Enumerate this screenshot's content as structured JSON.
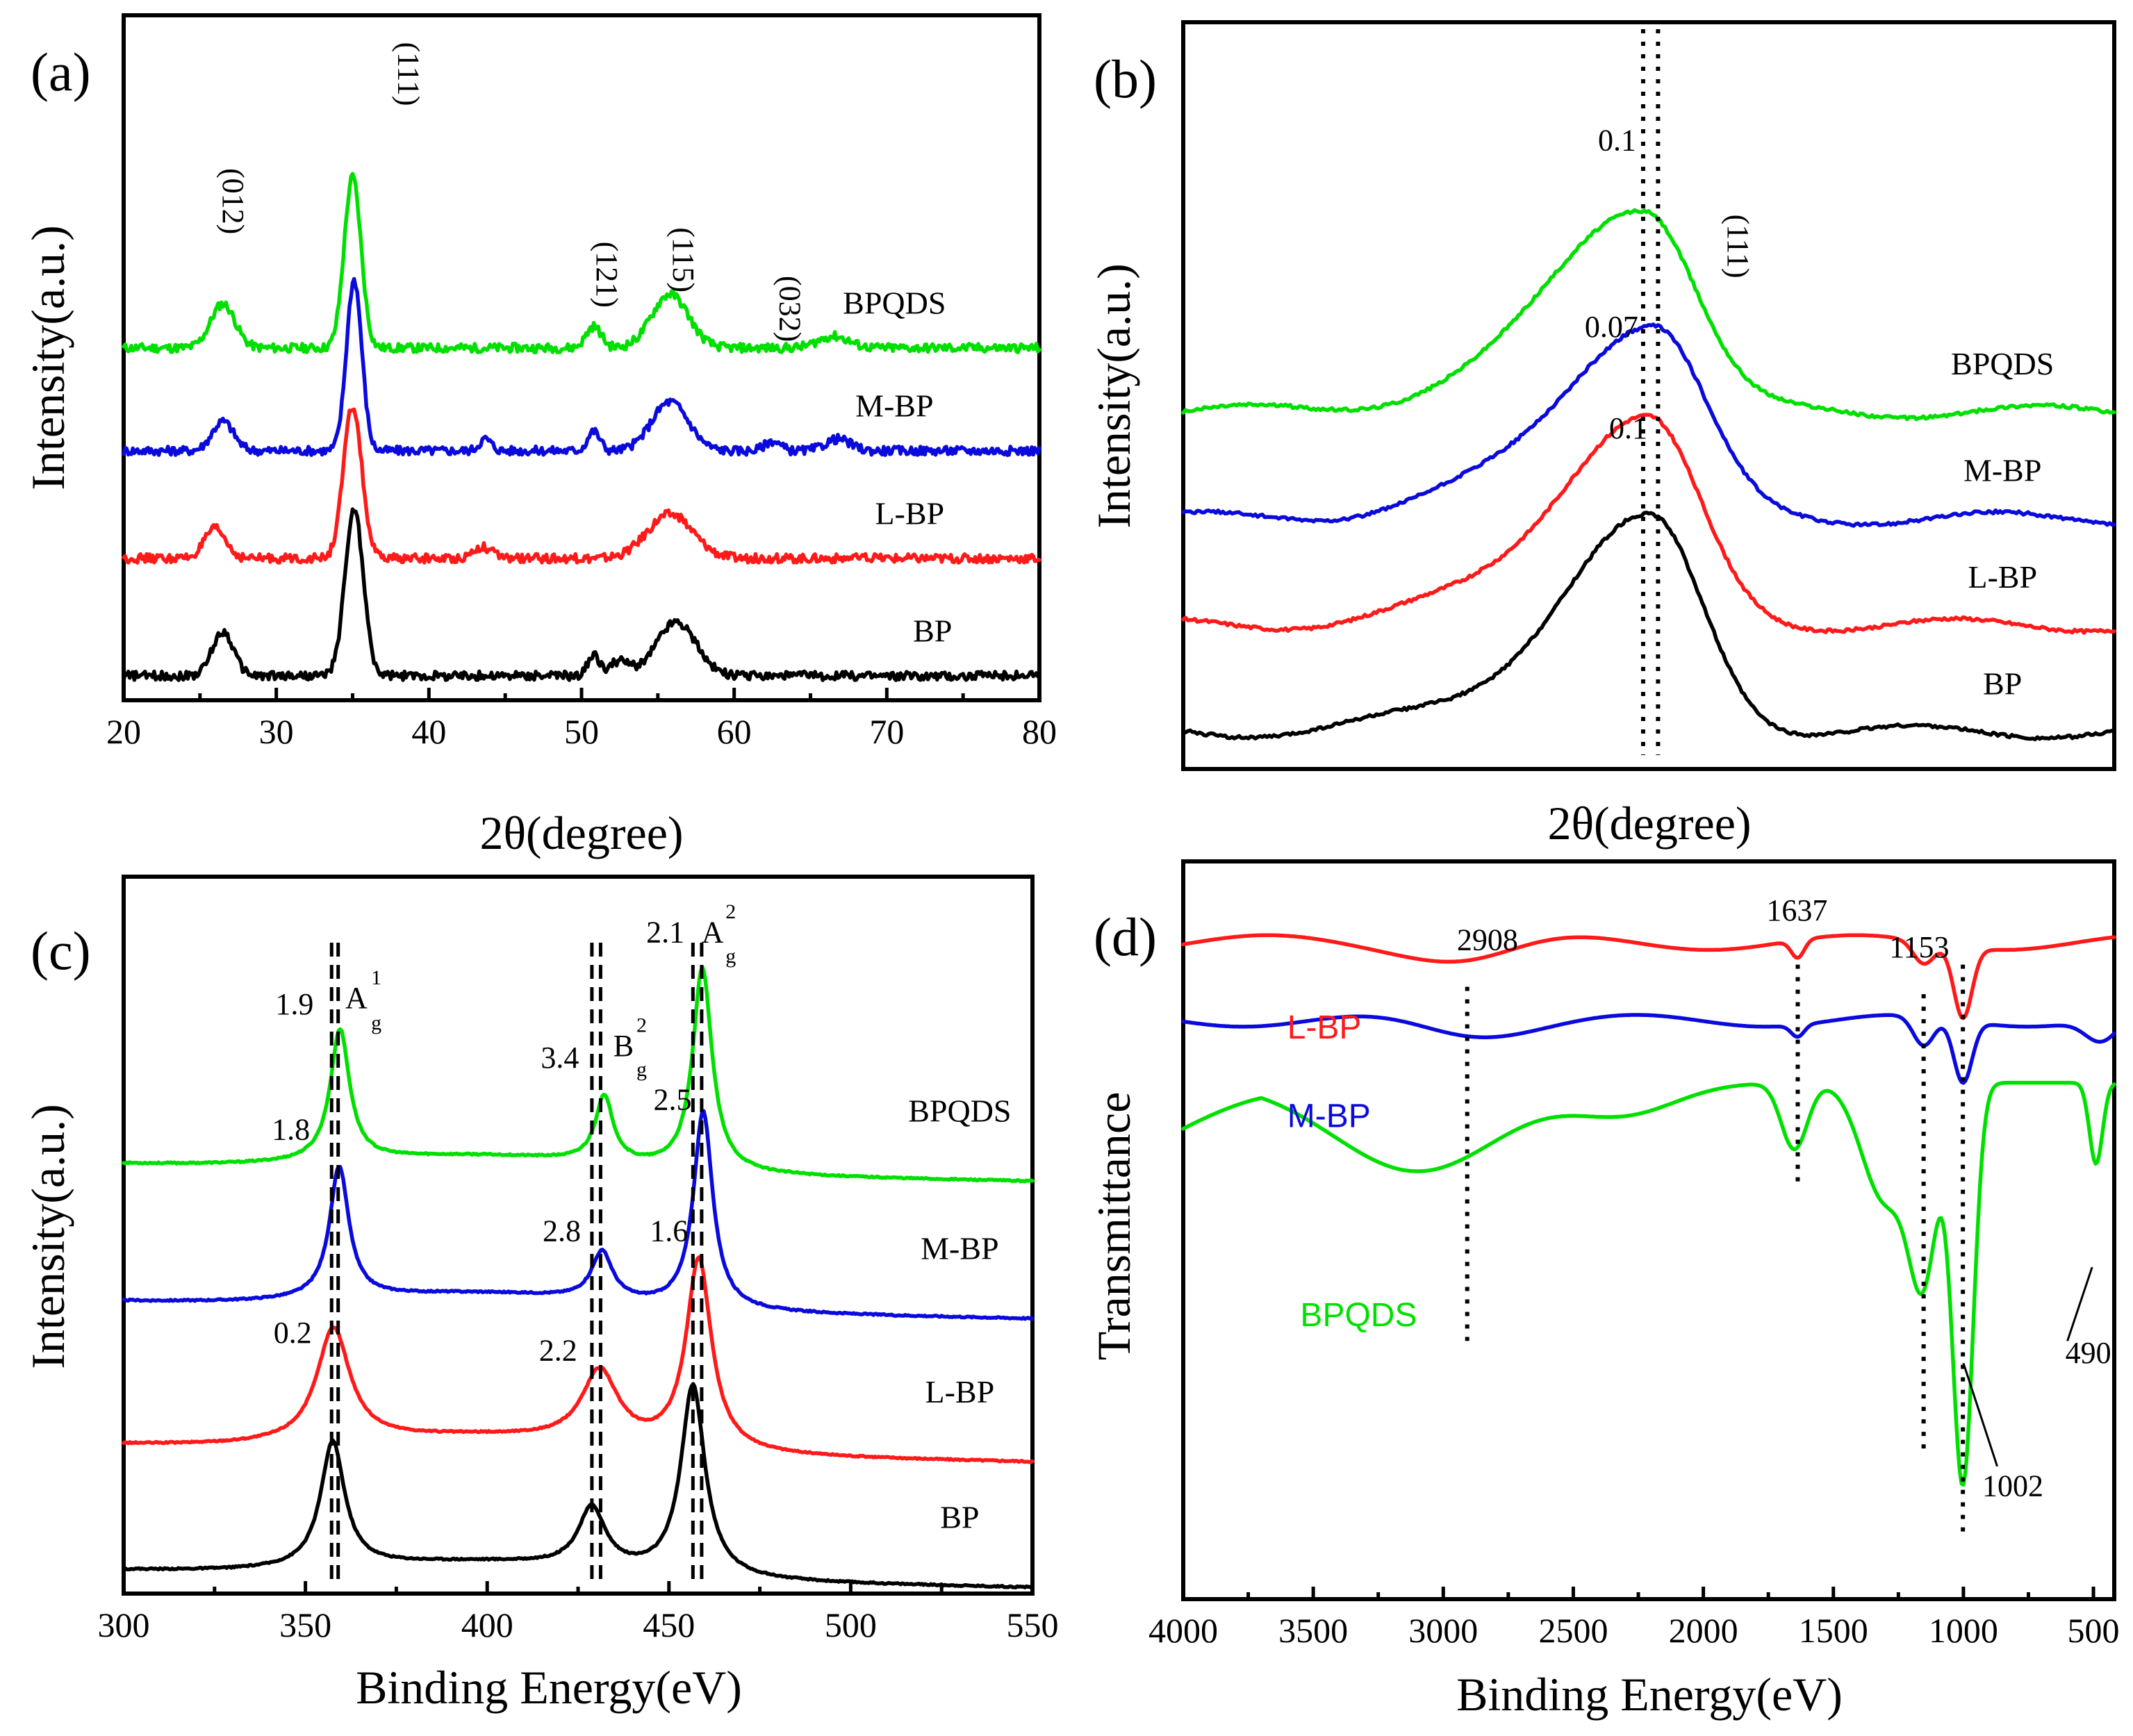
{
  "colors": {
    "green": "#00e000",
    "blue": "#0a0adc",
    "red": "#ff1a1a",
    "black": "#000000"
  },
  "chart_data": [
    {
      "panel": "a",
      "type": "line",
      "label": "(a)",
      "xlabel": "2θ(degree)",
      "ylabel": "Intensity(a.u.)",
      "xlim": [
        20,
        80
      ],
      "xticks": [
        "20",
        "30",
        "40",
        "50",
        "60",
        "70",
        "80"
      ],
      "series": [
        {
          "name": "BPQDS",
          "color": "#00e000",
          "baseline": 3.6,
          "peaks": [
            [
              26.5,
              0.45,
              0.8
            ],
            [
              35.0,
              1.75,
              0.55
            ],
            [
              50.8,
              0.22,
              0.5
            ],
            [
              55.8,
              0.55,
              1.2
            ],
            [
              66.5,
              0.12,
              1.0
            ]
          ],
          "label_x": 70.5
        },
        {
          "name": "M-BP",
          "color": "#0a0adc",
          "baseline": 2.55,
          "peaks": [
            [
              26.5,
              0.3,
              0.7
            ],
            [
              35.1,
              1.75,
              0.5
            ],
            [
              43.7,
              0.12,
              0.4
            ],
            [
              50.8,
              0.2,
              0.4
            ],
            [
              55.8,
              0.5,
              1.2
            ],
            [
              62.5,
              0.1,
              0.5
            ],
            [
              66.8,
              0.12,
              0.8
            ]
          ],
          "label_x": 70.5
        },
        {
          "name": "L-BP",
          "color": "#ff1a1a",
          "baseline": 1.45,
          "peaks": [
            [
              26.0,
              0.3,
              0.7
            ],
            [
              35.0,
              1.55,
              0.6
            ],
            [
              43.5,
              0.12,
              0.6
            ],
            [
              55.8,
              0.45,
              1.5
            ]
          ],
          "label_x": 71.5
        },
        {
          "name": "BP",
          "color": "#000000",
          "baseline": 0.25,
          "peaks": [
            [
              26.5,
              0.45,
              0.7
            ],
            [
              35.1,
              1.7,
              0.6
            ],
            [
              50.8,
              0.2,
              0.4
            ],
            [
              52.5,
              0.15,
              0.6
            ],
            [
              56.2,
              0.55,
              1.3
            ]
          ],
          "label_x": 73.0
        }
      ],
      "annotations": [
        {
          "text": "(012)",
          "x": 26.5,
          "y": 5.1
        },
        {
          "text": "(111)",
          "x": 38.0,
          "y": 6.4
        },
        {
          "text": "(121)",
          "x": 51.0,
          "y": 4.35
        },
        {
          "text": "(115)",
          "x": 56.0,
          "y": 4.5
        },
        {
          "text": "(032)",
          "x": 63.0,
          "y": 4.0
        }
      ]
    },
    {
      "panel": "b",
      "type": "line",
      "label": "(b)",
      "xlabel": "2θ(degree)",
      "ylabel": "Intensity(a.u.)",
      "series": [
        {
          "name": "BPQDS",
          "color": "#00e000",
          "baseline": 3.35,
          "peak_center": 49.6,
          "peak_height": 1.85,
          "label_x": 88.0
        },
        {
          "name": "M-BP",
          "color": "#0a0adc",
          "baseline": 2.35,
          "peak_center": 50.5,
          "peak_height": 1.75,
          "label_x": 88.0
        },
        {
          "name": "L-BP",
          "color": "#ff1a1a",
          "baseline": 1.35,
          "peak_center": 49.9,
          "peak_height": 1.85,
          "label_x": 88.0
        },
        {
          "name": "BP",
          "color": "#000000",
          "baseline": 0.35,
          "peak_center": 50.3,
          "peak_height": 1.9,
          "label_x": 88.0
        }
      ],
      "annotations": [
        {
          "text": "0.1",
          "x": 46.6,
          "y": 5.8
        },
        {
          "text": "(111)",
          "x": 58.5,
          "y": 4.9
        },
        {
          "text": "0.07",
          "x": 46.0,
          "y": 4.05
        },
        {
          "text": "0.1",
          "x": 47.8,
          "y": 3.1
        }
      ]
    },
    {
      "panel": "c",
      "type": "line",
      "label": "(c)",
      "xlabel": "Binding Energy(eV)",
      "ylabel": "Intensity(a.u.)",
      "xlim": [
        300,
        550
      ],
      "xticks": [
        "300",
        "350",
        "400",
        "450",
        "500",
        "550"
      ],
      "series": [
        {
          "name": "BPQDS",
          "color": "#00e000",
          "baseline": 3.6,
          "peaks": [
            [
              359.5,
              1.1,
              3.2
            ],
            [
              432.2,
              0.55,
              3.0
            ],
            [
              459.2,
              1.7,
              3.2
            ]
          ],
          "label_x": 530.0
        },
        {
          "name": "M-BP",
          "color": "#0a0adc",
          "baseline": 2.45,
          "peaks": [
            [
              359.3,
              1.1,
              3.2
            ],
            [
              431.6,
              0.4,
              3.5
            ],
            [
              459.4,
              1.65,
              3.2
            ]
          ],
          "label_x": 530.0
        },
        {
          "name": "L-BP",
          "color": "#ff1a1a",
          "baseline": 1.25,
          "peaks": [
            [
              357.7,
              0.95,
              5.5
            ],
            [
              431.0,
              0.6,
              6.0
            ],
            [
              458.2,
              1.6,
              4.2
            ]
          ],
          "label_x": 530.0
        },
        {
          "name": "BP",
          "color": "#000000",
          "baseline": 0.2,
          "peaks": [
            [
              357.5,
              1.05,
              4.0
            ],
            [
              428.8,
              0.5,
              4.5
            ],
            [
              456.6,
              1.6,
              4.0
            ]
          ],
          "label_x": 530.0
        }
      ],
      "annotations": [
        {
          "text": "1.9",
          "x": 347.0,
          "y": 4.85
        },
        {
          "text": "A",
          "x": 364.0,
          "y": 4.9
        },
        {
          "text": "1",
          "x": 369.5,
          "y": 5.1
        },
        {
          "text": "g",
          "x": 369.5,
          "y": 4.72
        },
        {
          "text": "3.4",
          "x": 420.0,
          "y": 4.4
        },
        {
          "text": "B",
          "x": 437.5,
          "y": 4.5
        },
        {
          "text": "2",
          "x": 442.5,
          "y": 4.7
        },
        {
          "text": "g",
          "x": 442.5,
          "y": 4.33
        },
        {
          "text": "2.1",
          "x": 449.0,
          "y": 5.45
        },
        {
          "text": "A",
          "x": 462.0,
          "y": 5.45
        },
        {
          "text": "2",
          "x": 467.0,
          "y": 5.65
        },
        {
          "text": "g",
          "x": 467.0,
          "y": 5.28
        },
        {
          "text": "1.8",
          "x": 346.0,
          "y": 3.8
        },
        {
          "text": "2.8",
          "x": 420.5,
          "y": 2.95
        },
        {
          "text": "2.5",
          "x": 451.0,
          "y": 4.05
        },
        {
          "text": "0.2",
          "x": 346.5,
          "y": 2.1
        },
        {
          "text": "2.2",
          "x": 419.5,
          "y": 1.95
        },
        {
          "text": "1.6",
          "x": 450.0,
          "y": 2.95
        }
      ]
    },
    {
      "panel": "d",
      "type": "line",
      "label": "(d)",
      "xlabel": "Binding Energy(eV)",
      "ylabel": "Transmittance",
      "xlim": [
        4000,
        420
      ],
      "xticks": [
        "4000",
        "3500",
        "3000",
        "2500",
        "2000",
        "1500",
        "1000",
        "500"
      ],
      "series": [
        {
          "name": "L-BP",
          "color": "#ff1a1a",
          "label_x": 3600,
          "label_y": 3.8
        },
        {
          "name": "M-BP",
          "color": "#0a0adc",
          "label_x": 3600,
          "label_y": 3.2
        },
        {
          "name": "BPQDS",
          "color": "#00e000",
          "label_x": 3550,
          "label_y": 1.85
        }
      ],
      "annotations": [
        {
          "text": "2908",
          "x": 2830,
          "y": 4.4
        },
        {
          "text": "1637",
          "x": 1640,
          "y": 4.6
        },
        {
          "text": "1153",
          "x": 1170,
          "y": 4.35
        },
        {
          "text": "490",
          "x": 520,
          "y": 1.6
        },
        {
          "text": "1002",
          "x": 810,
          "y": 0.7
        }
      ]
    }
  ]
}
